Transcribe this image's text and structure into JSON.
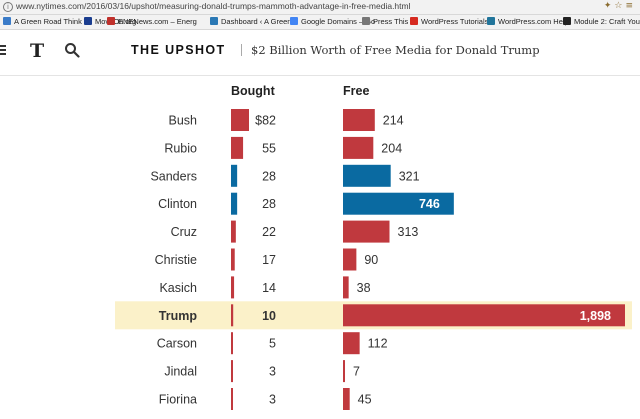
{
  "browser": {
    "url": "www.nytimes.com/2016/03/16/upshot/measuring-donald-trumps-mammoth-advantage-in-free-media.html",
    "bookmarks": [
      {
        "label": "A Green Road Think T",
        "color": "#3a7bc8"
      },
      {
        "label": "MoveOn.org",
        "color": "#1a3d8f"
      },
      {
        "label": "ENENews.com – Energ",
        "color": "#c0302b"
      },
      {
        "label": "Dashboard ‹ A Green",
        "color": "#2b79b5"
      },
      {
        "label": "Google Domains – Go",
        "color": "#4285f4"
      },
      {
        "label": "Press This",
        "color": "#777777"
      },
      {
        "label": "WordPress Tutorials –",
        "color": "#d62a20"
      },
      {
        "label": "WordPress.com Help",
        "color": "#21759b"
      },
      {
        "label": "Module 2: Craft Your",
        "color": "#222222"
      }
    ]
  },
  "header": {
    "logo": "T",
    "section": "THE UPSHOT",
    "headline": "$2 Billion Worth of Free Media for Donald Trump"
  },
  "chart_data": {
    "type": "bar",
    "columns": [
      "Bought",
      "Free"
    ],
    "categories": [
      "Bush",
      "Rubio",
      "Sanders",
      "Clinton",
      "Cruz",
      "Christie",
      "Kasich",
      "Trump",
      "Carson",
      "Jindal",
      "Fiorina"
    ],
    "series": [
      {
        "name": "Bought",
        "values": [
          82,
          55,
          28,
          28,
          22,
          17,
          14,
          10,
          5,
          3,
          3
        ],
        "labels": [
          "$82",
          "55",
          "28",
          "28",
          "22",
          "17",
          "14",
          "10",
          "5",
          "3",
          "3"
        ]
      },
      {
        "name": "Free",
        "values": [
          214,
          204,
          321,
          746,
          313,
          90,
          38,
          1898,
          112,
          7,
          45
        ],
        "labels": [
          "214",
          "204",
          "321",
          "746",
          "313",
          "90",
          "38",
          "1,898",
          "112",
          "7",
          "45"
        ]
      }
    ],
    "party": [
      "R",
      "R",
      "D",
      "D",
      "R",
      "R",
      "R",
      "R",
      "R",
      "R",
      "R"
    ],
    "highlight": "Trump",
    "colors": {
      "R": "#c0393e",
      "D": "#0a6aa1",
      "highlight_bg": "#fbf1c9"
    }
  }
}
